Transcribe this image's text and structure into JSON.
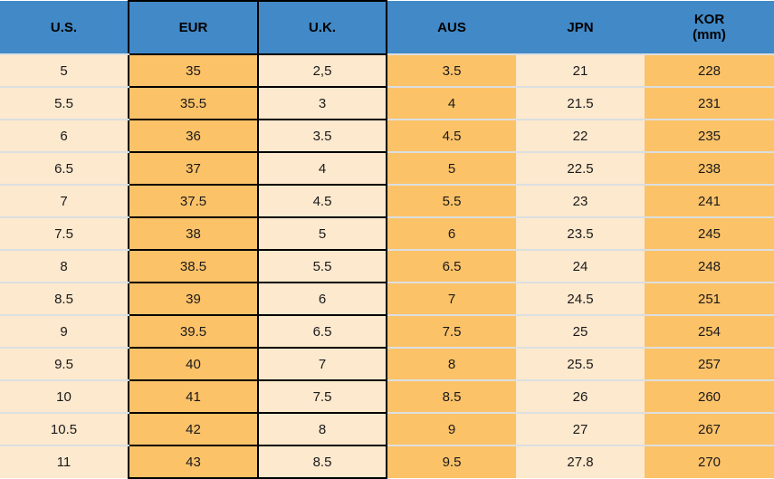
{
  "header": {
    "cells": [
      {
        "label": "U.S."
      },
      {
        "label": "EUR"
      },
      {
        "label": "U.K."
      },
      {
        "label": "AUS"
      },
      {
        "label": "JPN"
      },
      {
        "label": "KOR",
        "sublabel": "(mm)"
      }
    ]
  },
  "colors": {
    "header_bg": "#4189C7",
    "orange": "#FCC268",
    "cream": "#FDE9CE",
    "black_border": "#000000",
    "light_border": "#DBDFE1",
    "text": "#1A1A1A"
  },
  "chart_data": {
    "type": "table",
    "columns": [
      "U.S.",
      "EUR",
      "U.K.",
      "AUS",
      "JPN",
      "KOR (mm)"
    ],
    "rows": [
      [
        "5",
        "35",
        "2,5",
        "3.5",
        "21",
        "228"
      ],
      [
        "5.5",
        "35.5",
        "3",
        "4",
        "21.5",
        "231"
      ],
      [
        "6",
        "36",
        "3.5",
        "4.5",
        "22",
        "235"
      ],
      [
        "6.5",
        "37",
        "4",
        "5",
        "22.5",
        "238"
      ],
      [
        "7",
        "37.5",
        "4.5",
        "5.5",
        "23",
        "241"
      ],
      [
        "7.5",
        "38",
        "5",
        "6",
        "23.5",
        "245"
      ],
      [
        "8",
        "38.5",
        "5.5",
        "6.5",
        "24",
        "248"
      ],
      [
        "8.5",
        "39",
        "6",
        "7",
        "24.5",
        "251"
      ],
      [
        "9",
        "39.5",
        "6.5",
        "7.5",
        "25",
        "254"
      ],
      [
        "9.5",
        "40",
        "7",
        "8",
        "25.5",
        "257"
      ],
      [
        "10",
        "41",
        "7.5",
        "8.5",
        "26",
        "260"
      ],
      [
        "10.5",
        "42",
        "8",
        "9",
        "27",
        "267"
      ],
      [
        "11",
        "43",
        "8.5",
        "9.5",
        "27.8",
        "270"
      ]
    ]
  }
}
